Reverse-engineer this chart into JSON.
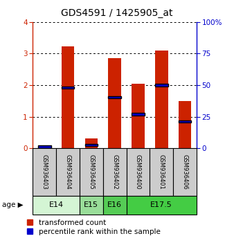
{
  "title": "GDS4591 / 1425905_at",
  "samples": [
    "GSM936403",
    "GSM936404",
    "GSM936405",
    "GSM936402",
    "GSM936400",
    "GSM936401",
    "GSM936406"
  ],
  "red_values": [
    0.05,
    3.22,
    0.3,
    2.85,
    2.05,
    3.1,
    1.5
  ],
  "blue_values_left_axis": [
    0.05,
    1.92,
    0.1,
    1.62,
    1.08,
    2.0,
    0.85
  ],
  "blue_bar_thickness": 0.08,
  "age_groups": [
    {
      "label": "E14",
      "start": 0,
      "end": 2,
      "color": "#d4f5d4"
    },
    {
      "label": "E15",
      "start": 2,
      "end": 3,
      "color": "#99dd99"
    },
    {
      "label": "E16",
      "start": 3,
      "end": 4,
      "color": "#55cc55"
    },
    {
      "label": "E17.5",
      "start": 4,
      "end": 7,
      "color": "#44cc44"
    }
  ],
  "ylim_left": [
    0,
    4
  ],
  "ylim_right": [
    0,
    100
  ],
  "yticks_left": [
    0,
    1,
    2,
    3,
    4
  ],
  "yticks_right": [
    0,
    25,
    50,
    75,
    100
  ],
  "red_color": "#cc2200",
  "blue_color": "#0000cc",
  "red_bar_width": 0.55,
  "label_area_color": "#cccccc",
  "title_fontsize": 10,
  "tick_fontsize": 7.5,
  "sample_fontsize": 6,
  "legend_fontsize": 7.5,
  "age_fontsize": 8
}
